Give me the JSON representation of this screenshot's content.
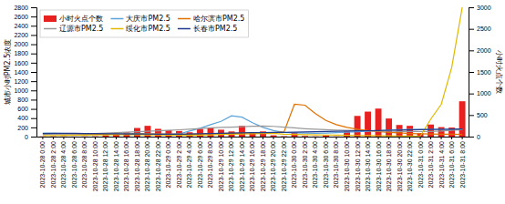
{
  "chart_data": {
    "type": "bar",
    "ylabel": "城市小时PM2.5浓度",
    "y2label": "小时火点个数",
    "ylim": [
      0,
      2800
    ],
    "yticks": [
      0,
      200,
      400,
      600,
      800,
      1000,
      1200,
      1400,
      1600,
      1800,
      2000,
      2200,
      2400,
      2600,
      2800
    ],
    "y2lim": [
      0,
      3000
    ],
    "y2ticks": [
      0,
      500,
      1000,
      1500,
      2000,
      2500,
      3000
    ],
    "grid": false,
    "legend": "upper left",
    "categories": [
      "2023-10-28 0:00",
      "2023-10-28 2:00",
      "2023-10-28 4:00",
      "2023-10-28 6:00",
      "2023-10-28 8:00",
      "2023-10-28 10:00",
      "2023-10-28 12:00",
      "2023-10-28 14:00",
      "2023-10-28 16:00",
      "2023-10-28 18:00",
      "2023-10-28 20:00",
      "2023-10-28 22:00",
      "2023-10-29 0:00",
      "2023-10-29 2:00",
      "2023-10-29 4:00",
      "2023-10-29 6:00",
      "2023-10-29 8:00",
      "2023-10-29 10:00",
      "2023-10-29 12:00",
      "2023-10-29 14:00",
      "2023-10-29 16:00",
      "2023-10-29 18:00",
      "2023-10-29 20:00",
      "2023-10-29 22:00",
      "2023-10-30 0:00",
      "2023-10-30 2:00",
      "2023-10-30 4:00",
      "2023-10-30 6:00",
      "2023-10-30 8:00",
      "2023-10-30 10:00",
      "2023-10-30 12:00",
      "2023-10-30 14:00",
      "2023-10-30 16:00",
      "2023-10-30 18:00",
      "2023-10-30 20:00",
      "2023-10-30 22:00",
      "2023-10-31 0:00",
      "2023-10-31 2:00",
      "2023-10-31 4:00",
      "2023-10-31 6:00",
      "2023-10-31 8:00"
    ],
    "series": [
      {
        "name": "小时火点个数",
        "type": "bar",
        "axis": "y2",
        "color": "#e82020",
        "values": [
          5,
          8,
          5,
          3,
          5,
          8,
          30,
          70,
          100,
          200,
          250,
          180,
          150,
          130,
          100,
          180,
          210,
          160,
          120,
          250,
          100,
          120,
          30,
          10,
          100,
          15,
          5,
          30,
          5,
          120,
          480,
          580,
          650,
          420,
          270,
          250,
          80,
          280,
          220,
          210,
          820
        ]
      },
      {
        "name": "大庆市PM2.5",
        "type": "line",
        "color": "#5ba3d9",
        "values": [
          75,
          72,
          68,
          65,
          60,
          58,
          55,
          58,
          62,
          65,
          60,
          55,
          52,
          60,
          120,
          180,
          260,
          330,
          450,
          420,
          300,
          200,
          130,
          90,
          80,
          75,
          72,
          78,
          85,
          95,
          105,
          115,
          125,
          140,
          150,
          155,
          158,
          158,
          155,
          155,
          150
        ]
      },
      {
        "name": "哈尔滨市PM2.5",
        "type": "line",
        "color": "#e07000",
        "values": [
          60,
          62,
          60,
          58,
          55,
          52,
          50,
          50,
          52,
          55,
          58,
          55,
          52,
          50,
          52,
          55,
          60,
          65,
          70,
          75,
          80,
          82,
          85,
          100,
          700,
          680,
          500,
          350,
          260,
          200,
          160,
          130,
          110,
          90,
          80,
          68,
          60,
          55,
          52,
          50,
          48
        ]
      },
      {
        "name": "辽源市PM2.5",
        "type": "line",
        "color": "#999999",
        "values": [
          50,
          52,
          55,
          58,
          62,
          68,
          75,
          85,
          95,
          105,
          115,
          125,
          135,
          148,
          162,
          175,
          188,
          198,
          205,
          215,
          225,
          230,
          222,
          205,
          188,
          172,
          160,
          150,
          142,
          138,
          132,
          128,
          122,
          118,
          112,
          110,
          108,
          112,
          120,
          135,
          148
        ]
      },
      {
        "name": "绥化市PM2.5",
        "type": "line",
        "color": "#e0b800",
        "values": [
          22,
          25,
          28,
          30,
          32,
          35,
          38,
          42,
          45,
          42,
          38,
          35,
          32,
          30,
          28,
          32,
          38,
          45,
          50,
          55,
          60,
          65,
          70,
          50,
          45,
          42,
          38,
          35,
          32,
          28,
          25,
          22,
          20,
          18,
          15,
          12,
          10,
          380,
          700,
          1500,
          2800
        ]
      },
      {
        "name": "长春市PM2.5",
        "type": "line",
        "color": "#1f3a8c",
        "values": [
          68,
          70,
          72,
          70,
          68,
          65,
          62,
          60,
          58,
          56,
          54,
          52,
          50,
          52,
          55,
          60,
          65,
          70,
          75,
          80,
          85,
          88,
          90,
          92,
          95,
          100,
          105,
          110,
          115,
          120,
          125,
          128,
          132,
          138,
          142,
          145,
          150,
          155,
          158,
          162,
          165
        ]
      }
    ]
  }
}
